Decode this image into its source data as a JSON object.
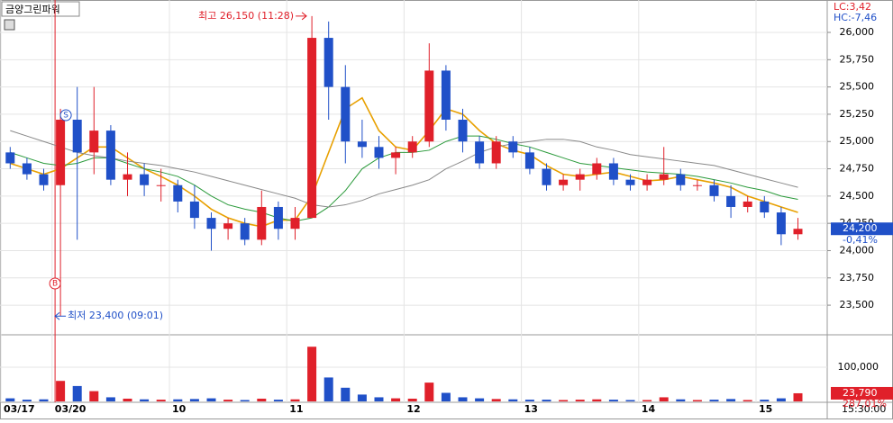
{
  "chart_data": {
    "type": "candlestick",
    "title": "금양그린파워",
    "lc_label": "LC:3,42",
    "hc_label": "HC:-7,46",
    "high_note": "최고 26,150 (11:28)",
    "low_note": "최저 23,400 (09:01)",
    "buy_marker": "B",
    "sell_marker": "S",
    "time_label": "15:30:00",
    "categories": [
      "03/17",
      null,
      null,
      "03/20",
      null,
      null,
      null,
      null,
      null,
      null,
      "10",
      null,
      null,
      null,
      null,
      null,
      null,
      "11",
      null,
      null,
      null,
      null,
      null,
      null,
      "12",
      null,
      null,
      null,
      null,
      null,
      null,
      "13",
      null,
      null,
      null,
      null,
      null,
      null,
      "14",
      null,
      null,
      null,
      null,
      null,
      null,
      "15",
      null,
      null
    ],
    "ohlc": [
      [
        24900,
        24950,
        24750,
        24800
      ],
      [
        24800,
        24850,
        24650,
        24700
      ],
      [
        24700,
        24750,
        24550,
        24600
      ],
      [
        24600,
        25300,
        23400,
        25200
      ],
      [
        25200,
        25500,
        24100,
        24900
      ],
      [
        24900,
        25500,
        24700,
        25100
      ],
      [
        25100,
        25150,
        24600,
        24650
      ],
      [
        24650,
        24900,
        24500,
        24700
      ],
      [
        24700,
        24800,
        24500,
        24600
      ],
      [
        24600,
        24750,
        24450,
        24600
      ],
      [
        24600,
        24650,
        24350,
        24450
      ],
      [
        24450,
        24600,
        24200,
        24300
      ],
      [
        24300,
        24350,
        24000,
        24200
      ],
      [
        24200,
        24300,
        24100,
        24250
      ],
      [
        24250,
        24300,
        24050,
        24100
      ],
      [
        24100,
        24550,
        24050,
        24400
      ],
      [
        24400,
        24450,
        24100,
        24200
      ],
      [
        24200,
        24400,
        24100,
        24300
      ],
      [
        24300,
        26150,
        24300,
        25950
      ],
      [
        25950,
        26100,
        25200,
        25500
      ],
      [
        25500,
        25700,
        24800,
        25000
      ],
      [
        25000,
        25200,
        24850,
        24950
      ],
      [
        24950,
        25050,
        24750,
        24850
      ],
      [
        24850,
        24950,
        24700,
        24900
      ],
      [
        24900,
        25050,
        24850,
        25000
      ],
      [
        25000,
        25900,
        24950,
        25650
      ],
      [
        25650,
        25700,
        25100,
        25200
      ],
      [
        25200,
        25300,
        24900,
        25000
      ],
      [
        25000,
        25050,
        24750,
        24800
      ],
      [
        24800,
        25050,
        24750,
        25000
      ],
      [
        25000,
        25050,
        24850,
        24900
      ],
      [
        24900,
        24950,
        24700,
        24750
      ],
      [
        24750,
        24800,
        24550,
        24600
      ],
      [
        24600,
        24700,
        24550,
        24650
      ],
      [
        24650,
        24750,
        24550,
        24700
      ],
      [
        24700,
        24850,
        24650,
        24800
      ],
      [
        24800,
        24850,
        24600,
        24650
      ],
      [
        24650,
        24700,
        24550,
        24600
      ],
      [
        24600,
        24700,
        24550,
        24650
      ],
      [
        24650,
        24950,
        24600,
        24700
      ],
      [
        24700,
        24750,
        24550,
        24600
      ],
      [
        24600,
        24650,
        24550,
        24600
      ],
      [
        24600,
        24650,
        24450,
        24500
      ],
      [
        24500,
        24600,
        24300,
        24400
      ],
      [
        24400,
        24500,
        24350,
        24450
      ],
      [
        24450,
        24500,
        24300,
        24350
      ],
      [
        24350,
        24400,
        24050,
        24150
      ],
      [
        24150,
        24300,
        24100,
        24200
      ]
    ],
    "series": [
      {
        "color": "#e8a000",
        "values": [
          24800,
          24750,
          24700,
          24750,
          24850,
          24950,
          24950,
          24850,
          24750,
          24680,
          24600,
          24500,
          24380,
          24300,
          24250,
          24220,
          24280,
          24280,
          24500,
          24900,
          25300,
          25400,
          25100,
          24950,
          24920,
          25100,
          25300,
          25250,
          25100,
          24980,
          24920,
          24880,
          24780,
          24700,
          24680,
          24700,
          24720,
          24680,
          24640,
          24650,
          24680,
          24650,
          24620,
          24580,
          24500,
          24450,
          24400,
          24350
        ]
      },
      {
        "color": "#2a9a3a",
        "values": [
          24900,
          24850,
          24800,
          24780,
          24800,
          24850,
          24850,
          24800,
          24750,
          24720,
          24680,
          24600,
          24500,
          24420,
          24380,
          24350,
          24300,
          24270,
          24300,
          24400,
          24550,
          24750,
          24850,
          24900,
          24900,
          24920,
          25000,
          25050,
          25050,
          25020,
          24980,
          24950,
          24900,
          24850,
          24800,
          24780,
          24760,
          24740,
          24720,
          24710,
          24700,
          24680,
          24650,
          24620,
          24580,
          24550,
          24500,
          24470
        ]
      },
      {
        "color": "#888888",
        "values": [
          25100,
          25050,
          25000,
          24950,
          24900,
          24870,
          24850,
          24820,
          24800,
          24780,
          24750,
          24720,
          24680,
          24640,
          24600,
          24560,
          24520,
          24480,
          24420,
          24400,
          24420,
          24460,
          24520,
          24560,
          24600,
          24650,
          24750,
          24820,
          24900,
          24950,
          24980,
          25000,
          25020,
          25020,
          25000,
          24950,
          24920,
          24880,
          24860,
          24840,
          24820,
          24800,
          24780,
          24740,
          24700,
          24660,
          24620,
          24580
        ]
      }
    ],
    "up_color": "#e0202a",
    "down_color": "#2050c8",
    "ylim": [
      23245,
      26297
    ],
    "yticks": [
      {
        "value": 23500,
        "label": "23,500"
      },
      {
        "value": 23750,
        "label": "23,750"
      },
      {
        "value": 24000,
        "label": "24,000"
      },
      {
        "value": 24250,
        "label": "24,250"
      },
      {
        "value": 24500,
        "label": "24,500"
      },
      {
        "value": 24750,
        "label": "24,750"
      },
      {
        "value": 25000,
        "label": "25,000"
      },
      {
        "value": 25250,
        "label": "25,250"
      },
      {
        "value": 25500,
        "label": "25,500"
      },
      {
        "value": 25750,
        "label": "25,750"
      },
      {
        "value": 26000,
        "label": "26,000"
      }
    ],
    "current": {
      "value": 24200,
      "label": "24,200",
      "change_label": "-0,41%"
    },
    "volume": [
      9000,
      5000,
      6000,
      60000,
      45000,
      30000,
      12000,
      8000,
      6000,
      5000,
      6000,
      7000,
      9000,
      5000,
      4000,
      8000,
      5000,
      6000,
      160000,
      70000,
      40000,
      20000,
      12000,
      9000,
      8000,
      55000,
      25000,
      12000,
      9000,
      7000,
      6000,
      5000,
      5000,
      4000,
      5000,
      6000,
      5000,
      4000,
      4000,
      12000,
      6000,
      4000,
      5000,
      7000,
      4000,
      5000,
      9000,
      23790
    ],
    "volume_ylim": [
      0,
      187000
    ],
    "volume_yticks": [
      {
        "value": 100000,
        "label": "100,000"
      }
    ],
    "volume_current": {
      "value": 23790,
      "label": "23,790",
      "change_label": "287,01%"
    }
  }
}
